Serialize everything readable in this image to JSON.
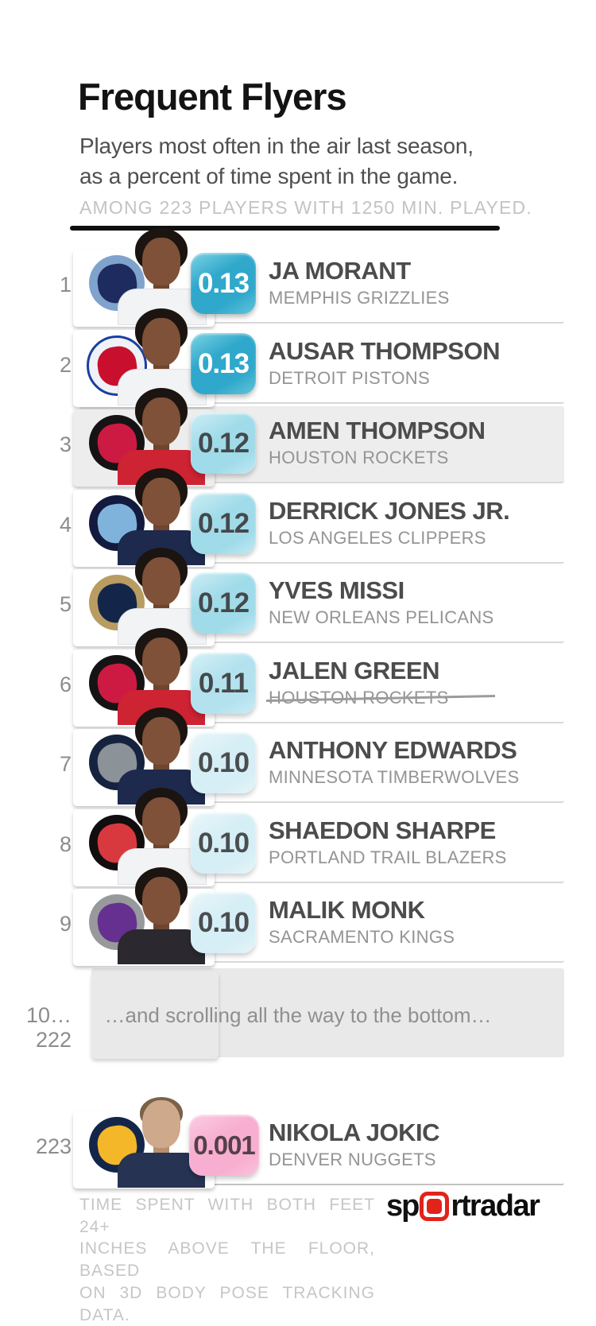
{
  "header": {
    "title": "Frequent Flyers",
    "subtitle_line1": "Players most often in the air last season,",
    "subtitle_line2": "as a percent of time spent in the game.",
    "qualifier": "AMONG 223 PLAYERS WITH 1250 MIN. PLAYED."
  },
  "list": {
    "players": [
      {
        "rank": "1",
        "value": "0.13",
        "name": "JA MORANT",
        "team": "MEMPHIS GRIZZLIES"
      },
      {
        "rank": "2",
        "value": "0.13",
        "name": "AUSAR THOMPSON",
        "team": "DETROIT PISTONS"
      },
      {
        "rank": "3",
        "value": "0.12",
        "name": "AMEN THOMPSON",
        "team": "HOUSTON ROCKETS"
      },
      {
        "rank": "4",
        "value": "0.12",
        "name": "DERRICK JONES JR.",
        "team": "LOS ANGELES CLIPPERS"
      },
      {
        "rank": "5",
        "value": "0.12",
        "name": "YVES MISSI",
        "team": "NEW ORLEANS PELICANS"
      },
      {
        "rank": "6",
        "value": "0.11",
        "name": "JALEN GREEN",
        "team": "HOUSTON ROCKETS",
        "team_struck": true
      },
      {
        "rank": "7",
        "value": "0.10",
        "name": "ANTHONY EDWARDS",
        "team": "MINNESOTA TIMBERWOLVES"
      },
      {
        "rank": "8",
        "value": "0.10",
        "name": "SHAEDON SHARPE",
        "team": "PORTLAND TRAIL BLAZERS"
      },
      {
        "rank": "9",
        "value": "0.10",
        "name": "MALIK MONK",
        "team": "SACRAMENTO KINGS"
      },
      {
        "rank": "223",
        "value": "0.001",
        "name": "NIKOLA JOKIC",
        "team": "DENVER NUGGETS"
      }
    ],
    "skip_row": {
      "rank": "10…222",
      "label": "…and scrolling all the way to the bottom…"
    }
  },
  "footer": {
    "note_line1": "TIME SPENT WITH BOTH FEET 24+",
    "note_line2": "INCHES ABOVE THE FLOOR, BASED",
    "note_line3": "ON 3D BODY POSE TRACKING DATA.",
    "brand_part1": "sp",
    "brand_part2": "rt",
    "brand_part3": "radar"
  },
  "colors": {
    "badge_high_teal": "#2fa8cb",
    "badge_mid_light_teal": "#a0dbe9",
    "badge_011": "#b3e2ee",
    "badge_010": "#d6eef5",
    "badge_low_pink": "#f7aed0",
    "brand_red": "#e2231a",
    "row_highlight_gray": "#ededed",
    "skip_box_gray": "#e9e9e9",
    "separator_gray": "#d8d8d8",
    "name_gray": "#4c4c4c",
    "team_gray": "#949494",
    "qualifier_gray": "#c3c3c3"
  },
  "chart_data": {
    "type": "table",
    "title": "Frequent Flyers",
    "subtitle": "Players most often in the air last season, as a percent of time spent in the game.",
    "qualifier": "AMONG 223 PLAYERS WITH 1250 MIN. PLAYED.",
    "metric_note": "TIME SPENT WITH BOTH FEET 24+ INCHES ABOVE THE FLOOR, BASED ON 3D BODY POSE TRACKING DATA.",
    "columns": [
      "rank",
      "player",
      "team",
      "pct_time_in_air"
    ],
    "rows": [
      [
        1,
        "JA MORANT",
        "MEMPHIS GRIZZLIES",
        0.13
      ],
      [
        2,
        "AUSAR THOMPSON",
        "DETROIT PISTONS",
        0.13
      ],
      [
        3,
        "AMEN THOMPSON",
        "HOUSTON ROCKETS",
        0.12
      ],
      [
        4,
        "DERRICK JONES JR.",
        "LOS ANGELES CLIPPERS",
        0.12
      ],
      [
        5,
        "YVES MISSI",
        "NEW ORLEANS PELICANS",
        0.12
      ],
      [
        6,
        "JALEN GREEN",
        "HOUSTON ROCKETS",
        0.11
      ],
      [
        7,
        "ANTHONY EDWARDS",
        "MINNESOTA TIMBERWOLVES",
        0.1
      ],
      [
        8,
        "SHAEDON SHARPE",
        "PORTLAND TRAIL BLAZERS",
        0.1
      ],
      [
        9,
        "MALIK MONK",
        "SACRAMENTO KINGS",
        0.1
      ],
      [
        223,
        "NIKOLA JOKIC",
        "DENVER NUGGETS",
        0.001
      ]
    ],
    "omitted_rows_label": "10…222 …and scrolling all the way to the bottom…",
    "value_color_scale": "teal (high) to pink (low)",
    "source_brand": "sportradar"
  }
}
